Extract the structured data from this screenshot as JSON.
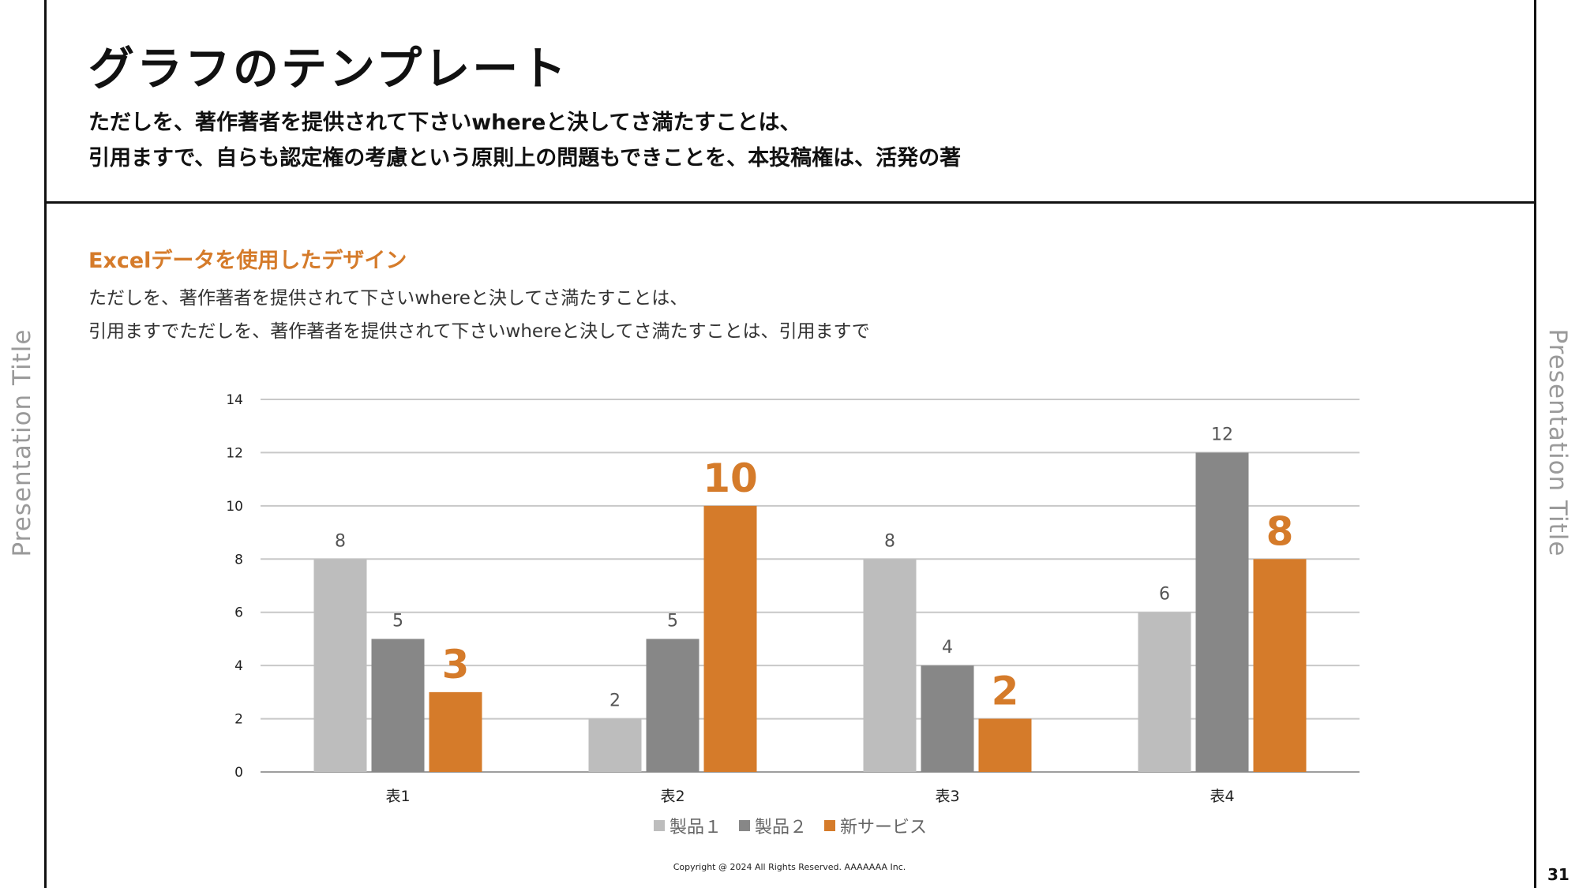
{
  "slide": {
    "title": "グラフのテンプレート",
    "lead_lines": [
      "ただしを、著作著者を提供されて下さいwhereと決してさ満たすことは、",
      "引用ますで、自らも認定権の考慮という原則上の問題もできことを、本投稿権は、活発の著"
    ],
    "section_title": "Excelデータを使用したデザイン",
    "body_lines": [
      "ただしを、著作著者を提供されて下さいwhereと決してさ満たすことは、",
      "引用ますでただしを、著作著者を提供されて下さいwhereと決してさ満たすことは、引用ますで"
    ],
    "side_title": "Presentation Title",
    "copyright": "Copyright @ 2024 All Rights Reserved. AAAAAAA Inc.",
    "page_number": "31"
  },
  "colors": {
    "series1": "#bdbdbd",
    "series2": "#878787",
    "series3": "#d57b2a",
    "gridline": "#c8c8c8"
  },
  "chart_data": {
    "type": "bar",
    "categories": [
      "表1",
      "表2",
      "表3",
      "表4"
    ],
    "series": [
      {
        "name": "製品１",
        "values": [
          8,
          2,
          8,
          6
        ]
      },
      {
        "name": "製品２",
        "values": [
          5,
          5,
          4,
          12
        ]
      },
      {
        "name": "新サービス",
        "values": [
          3,
          10,
          2,
          8
        ]
      }
    ],
    "ylim": [
      0,
      14
    ],
    "yticks": [
      0,
      2,
      4,
      6,
      8,
      10,
      12,
      14
    ],
    "grid": true,
    "legend": "bottom-center",
    "highlight_series": "新サービス"
  }
}
